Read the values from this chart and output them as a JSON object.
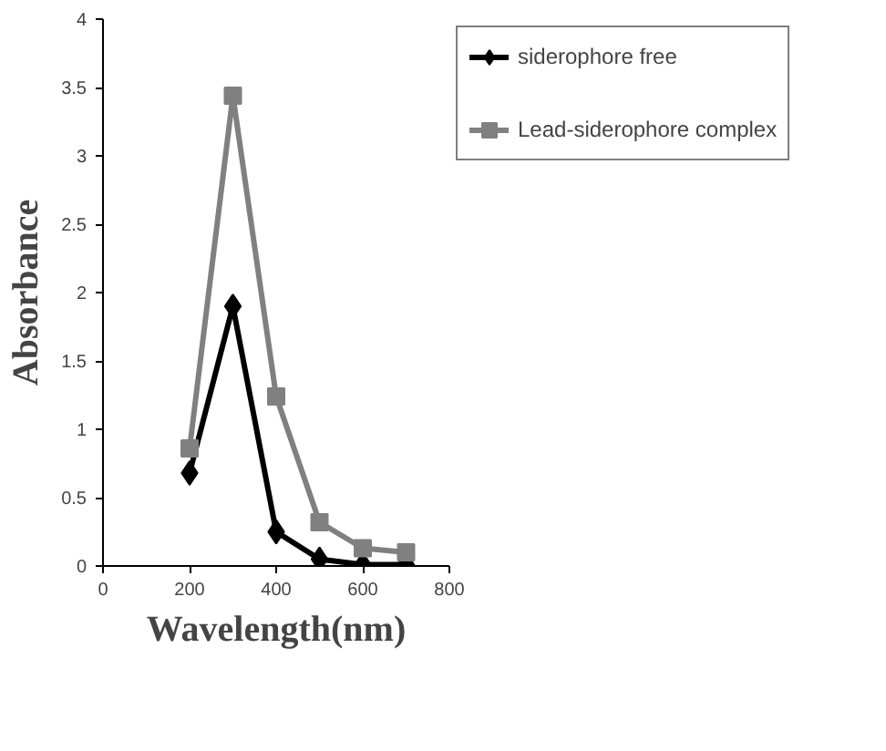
{
  "chart_data": {
    "type": "line",
    "xlabel": "Wavelength(nm)",
    "ylabel": "Absorbance",
    "x": [
      200,
      300,
      400,
      500,
      600,
      700
    ],
    "series": [
      {
        "name": "siderophore free",
        "color": "#000000",
        "marker": "diamond",
        "values": [
          0.68,
          1.9,
          0.25,
          0.05,
          0.01,
          0.01
        ]
      },
      {
        "name": "Lead-siderophore complex",
        "color": "#808080",
        "marker": "square",
        "values": [
          0.86,
          3.44,
          1.24,
          0.32,
          0.13,
          0.1
        ]
      }
    ],
    "xlim": [
      0,
      800
    ],
    "ylim": [
      0,
      4
    ],
    "xticks": [
      0,
      200,
      400,
      600,
      800
    ],
    "yticks": [
      0,
      0.5,
      1,
      1.5,
      2,
      2.5,
      3,
      3.5,
      4
    ],
    "grid": false,
    "legend": "right",
    "line_style": "solid"
  }
}
